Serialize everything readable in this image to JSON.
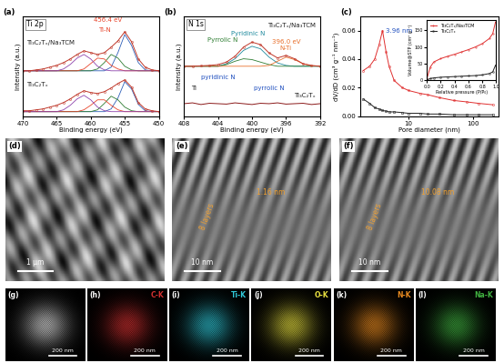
{
  "chart_data": [
    {
      "label": "(a)",
      "type": "line",
      "title": "Ti 2p",
      "x_label": "Binding energy (eV)",
      "y_label": "Intensity (a.u.)",
      "x": [
        470,
        469,
        468,
        467,
        466,
        465,
        464,
        463,
        462,
        461,
        460,
        459,
        458,
        457,
        456,
        455,
        454,
        453,
        452,
        451,
        450
      ],
      "xlim": [
        470,
        450
      ],
      "xticks": [
        470,
        465,
        460,
        455,
        450
      ],
      "ylim": [
        0,
        11
      ],
      "tick_labels": "x",
      "series": [
        {
          "name": "Ti₃C₂Tₓ/Na₃TCM",
          "color": "#c0392b",
          "marker": "o",
          "line_style": "solid",
          "values": [
            5.0,
            5.0,
            5.1,
            5.2,
            5.4,
            5.6,
            5.9,
            6.3,
            6.8,
            7.2,
            7.0,
            6.8,
            7.0,
            7.6,
            8.3,
            9.3,
            8.2,
            6.3,
            5.4,
            5.1,
            5.0
          ],
          "components": [
            {
              "color": "#2e5fb8",
              "values": [
                5.0,
                5.0,
                5.0,
                5.0,
                5.0,
                5.0,
                5.0,
                5.0,
                5.0,
                5.0,
                5.0,
                5.0,
                5.0,
                5.4,
                7.0,
                9.0,
                7.8,
                5.9,
                5.1,
                5.0,
                5.0
              ]
            },
            {
              "color": "#2e7d32",
              "values": [
                5.0,
                5.0,
                5.0,
                5.0,
                5.0,
                5.0,
                5.0,
                5.0,
                5.0,
                5.0,
                5.0,
                5.2,
                5.9,
                6.8,
                6.4,
                5.5,
                5.1,
                5.0,
                5.0,
                5.0,
                5.0
              ]
            },
            {
              "color": "#e8452c",
              "values": [
                5.0,
                5.0,
                5.0,
                5.0,
                5.0,
                5.0,
                5.0,
                5.0,
                5.0,
                5.2,
                5.8,
                6.4,
                6.3,
                5.6,
                5.2,
                5.0,
                5.0,
                5.0,
                5.0,
                5.0,
                5.0
              ]
            },
            {
              "color": "#8e44ad",
              "values": [
                5.0,
                5.0,
                5.0,
                5.0,
                5.0,
                5.0,
                5.2,
                5.7,
                6.4,
                6.8,
                6.3,
                5.5,
                5.1,
                5.0,
                5.0,
                5.0,
                5.0,
                5.0,
                5.0,
                5.0,
                5.0
              ]
            }
          ]
        },
        {
          "name": "Ti₃C₂Tₓ",
          "color": "#c0392b",
          "marker": "o",
          "line_style": "solid",
          "values": [
            0.6,
            0.6,
            0.7,
            0.8,
            1.0,
            1.2,
            1.5,
            1.9,
            2.4,
            2.8,
            2.6,
            2.5,
            2.7,
            3.1,
            3.6,
            4.0,
            3.2,
            1.5,
            0.8,
            0.6,
            0.5
          ],
          "components": [
            {
              "color": "#2e5fb8",
              "values": [
                0.5,
                0.5,
                0.5,
                0.5,
                0.5,
                0.5,
                0.5,
                0.5,
                0.5,
                0.5,
                0.5,
                0.5,
                0.5,
                0.8,
                2.0,
                3.8,
                3.0,
                1.3,
                0.6,
                0.5,
                0.5
              ]
            },
            {
              "color": "#2e7d32",
              "values": [
                0.5,
                0.5,
                0.5,
                0.5,
                0.5,
                0.5,
                0.5,
                0.5,
                0.5,
                0.5,
                0.5,
                0.7,
                1.4,
                2.2,
                1.8,
                1.0,
                0.6,
                0.5,
                0.5,
                0.5,
                0.5
              ]
            },
            {
              "color": "#e8452c",
              "values": [
                0.5,
                0.5,
                0.5,
                0.5,
                0.5,
                0.5,
                0.5,
                0.5,
                0.5,
                0.7,
                1.2,
                1.8,
                1.8,
                1.2,
                0.7,
                0.5,
                0.5,
                0.5,
                0.5,
                0.5,
                0.5
              ]
            },
            {
              "color": "#8e44ad",
              "values": [
                0.5,
                0.5,
                0.5,
                0.5,
                0.5,
                0.5,
                0.7,
                1.2,
                1.9,
                2.3,
                1.8,
                1.0,
                0.6,
                0.5,
                0.5,
                0.5,
                0.5,
                0.5,
                0.5,
                0.5,
                0.5
              ]
            }
          ]
        }
      ],
      "annotations": [
        {
          "text": "456.4 eV",
          "x": 457.5,
          "y": 10.3,
          "color": "#e8452c"
        },
        {
          "text": "Ti-N",
          "x": 458.0,
          "y": 9.2,
          "color": "#e8452c"
        }
      ]
    },
    {
      "label": "(b)",
      "type": "line",
      "title": "N 1s",
      "x_label": "Binding energy (eV)",
      "y_label": "Intensity (a.u.)",
      "x": [
        408,
        407,
        406,
        405,
        404,
        403,
        402,
        401,
        400,
        399,
        398,
        397,
        396,
        395,
        394,
        393,
        392
      ],
      "xlim": [
        408,
        392
      ],
      "xticks": [
        408,
        404,
        400,
        396,
        392
      ],
      "ylim": [
        0,
        12
      ],
      "tick_labels": "x",
      "series": [
        {
          "name": "Ti₃C₂Tₓ/Na₃TCM",
          "color": "#c0392b",
          "marker": "o",
          "line_style": "solid",
          "values": [
            6.0,
            6.0,
            6.05,
            6.1,
            6.2,
            6.5,
            7.2,
            8.3,
            8.9,
            8.6,
            7.6,
            7.0,
            7.3,
            6.9,
            6.3,
            6.1,
            6.0
          ],
          "components": [
            {
              "color": "#1f8a9e",
              "values": [
                6.0,
                6.0,
                6.0,
                6.0,
                6.0,
                6.3,
                6.9,
                7.9,
                8.4,
                8.1,
                7.1,
                6.4,
                6.1,
                6.0,
                6.0,
                6.0,
                6.0
              ]
            },
            {
              "color": "#2e7d32",
              "values": [
                6.0,
                6.0,
                6.0,
                6.0,
                6.0,
                6.2,
                6.6,
                6.9,
                6.8,
                6.5,
                6.2,
                6.0,
                6.0,
                6.0,
                6.0,
                6.0,
                6.0
              ]
            },
            {
              "color": "#e8702c",
              "values": [
                6.0,
                6.0,
                6.0,
                6.0,
                6.0,
                6.0,
                6.0,
                6.0,
                6.0,
                6.0,
                6.1,
                6.6,
                7.1,
                6.8,
                6.3,
                6.05,
                6.0
              ]
            }
          ]
        },
        {
          "name": "Ti₃C₂Tₓ",
          "color": "#8b1a1a",
          "line_style": "solid",
          "values": [
            1.5,
            1.6,
            1.4,
            1.55,
            1.5,
            1.45,
            1.6,
            1.5,
            1.4,
            1.55,
            1.5,
            1.6,
            1.45,
            1.5,
            1.55,
            1.4,
            1.5
          ]
        }
      ],
      "annotations": [
        {
          "text": "Pyridinic N",
          "x": 400.5,
          "y": 9.6,
          "color": "#1f8a9e"
        },
        {
          "text": "Pyrrolic N",
          "x": 403.5,
          "y": 8.8,
          "color": "#2e7d32"
        },
        {
          "text": "396.0 eV",
          "x": 396.0,
          "y": 8.6,
          "color": "#e8702c"
        },
        {
          "text": "N-Ti",
          "x": 396.0,
          "y": 7.8,
          "color": "#e8702c"
        },
        {
          "text": "pyridinic N",
          "x": 404.0,
          "y": 4.3,
          "color": "#1f4fbf"
        },
        {
          "text": "pyrrolic N",
          "x": 398.0,
          "y": 3.0,
          "color": "#1f4fbf"
        },
        {
          "text": "Ti",
          "x": 406.8,
          "y": 3.0,
          "color": "#222222"
        }
      ]
    },
    {
      "label": "(c)",
      "type": "line",
      "log": "x",
      "x_label": "Pore diameter (nm)",
      "y_label": "dV/dD (cm³ g⁻¹ nm⁻¹)",
      "x": [
        2,
        2.5,
        3,
        3.5,
        3.96,
        4.5,
        5,
        6,
        8,
        10,
        15,
        20,
        30,
        50,
        80,
        120,
        200
      ],
      "xlim": [
        1.8,
        250
      ],
      "xticks": [
        10,
        100
      ],
      "ylim": [
        0,
        0.07
      ],
      "yticks": [
        {
          "value": 0,
          "label": "0.00"
        },
        {
          "value": 0.02,
          "label": "0.02"
        },
        {
          "value": 0.04,
          "label": "0.04"
        },
        {
          "value": 0.06,
          "label": "0.06"
        }
      ],
      "series": [
        {
          "name": "Ti₃C₂Tₓ/Na₃TCM",
          "color": "#e03030",
          "marker": "o",
          "line_style": "solid",
          "values": [
            0.032,
            0.035,
            0.04,
            0.05,
            0.06,
            0.045,
            0.035,
            0.025,
            0.02,
            0.018,
            0.016,
            0.015,
            0.013,
            0.011,
            0.01,
            0.009,
            0.008
          ]
        },
        {
          "name": "Ti₃C₂Tₓ",
          "color": "#222222",
          "marker": "s",
          "line_style": "solid",
          "values": [
            0.012,
            0.009,
            0.006,
            0.005,
            0.004,
            0.0035,
            0.003,
            0.003,
            0.0025,
            0.002,
            0.002,
            0.0015,
            0.0015,
            0.001,
            0.001,
            0.001,
            0.001
          ]
        }
      ],
      "annotations": [
        {
          "text": "3.96 nm",
          "x": 4.5,
          "y": 0.06,
          "color": "#1f4fbf"
        }
      ],
      "inset": {
        "type": "line",
        "x_label": "Relative pressure (P/P₀)",
        "y_label": "Volume@STP (cm³ g⁻¹)",
        "x": [
          0.0,
          0.05,
          0.1,
          0.2,
          0.3,
          0.4,
          0.5,
          0.6,
          0.7,
          0.8,
          0.9,
          0.95,
          0.99
        ],
        "xlim": [
          0,
          1
        ],
        "xticks": [
          {
            "value": 0,
            "label": "0.0"
          },
          {
            "value": 0.2,
            "label": "0.2"
          },
          {
            "value": 0.4,
            "label": "0.4"
          },
          {
            "value": 0.6,
            "label": "0.6"
          },
          {
            "value": 0.8,
            "label": "0.8"
          },
          {
            "value": 1,
            "label": "1.0"
          }
        ],
        "ylim": [
          0,
          180
        ],
        "yticks": [
          0,
          50,
          100,
          150
        ],
        "legend": "upper left",
        "series": [
          {
            "name": "Ti₃C₂Tₓ/Na₃TCM",
            "color": "#e03030",
            "marker": "o",
            "line_style": "solid",
            "values": [
              5,
              40,
              55,
              65,
              72,
              78,
              85,
              92,
              100,
              110,
              125,
              140,
              175
            ]
          },
          {
            "name": "Ti₃C₂Tₓ",
            "color": "#222222",
            "marker": "s",
            "line_style": "solid",
            "values": [
              1,
              5,
              7,
              9,
              10,
              11,
              12,
              13,
              14,
              16,
              20,
              25,
              45
            ]
          }
        ]
      }
    }
  ],
  "images": [
    {
      "label": "(d)",
      "scale_bar": "1 μm",
      "annotations": []
    },
    {
      "label": "(e)",
      "scale_bar": "10 nm",
      "annotations": [
        "1.16 nm",
        "8 layers"
      ]
    },
    {
      "label": "(f)",
      "scale_bar": "10 nm",
      "annotations": [
        "10.08 nm",
        "8 layers"
      ]
    }
  ],
  "maps": [
    {
      "label": "(g)",
      "element": null,
      "scale_bar": "200 nm",
      "color": "#e0e0e0"
    },
    {
      "label": "(h)",
      "element": "C-K",
      "scale_bar": "200 nm",
      "color": "#d03030"
    },
    {
      "label": "(i)",
      "element": "Ti-K",
      "scale_bar": "200 nm",
      "color": "#30c8d8"
    },
    {
      "label": "(j)",
      "element": "O-K",
      "scale_bar": "200 nm",
      "color": "#e8e040"
    },
    {
      "label": "(k)",
      "element": "N-K",
      "scale_bar": "200 nm",
      "color": "#e88a20"
    },
    {
      "label": "(l)",
      "element": "Na-K",
      "scale_bar": "200 nm",
      "color": "#40b040"
    }
  ]
}
